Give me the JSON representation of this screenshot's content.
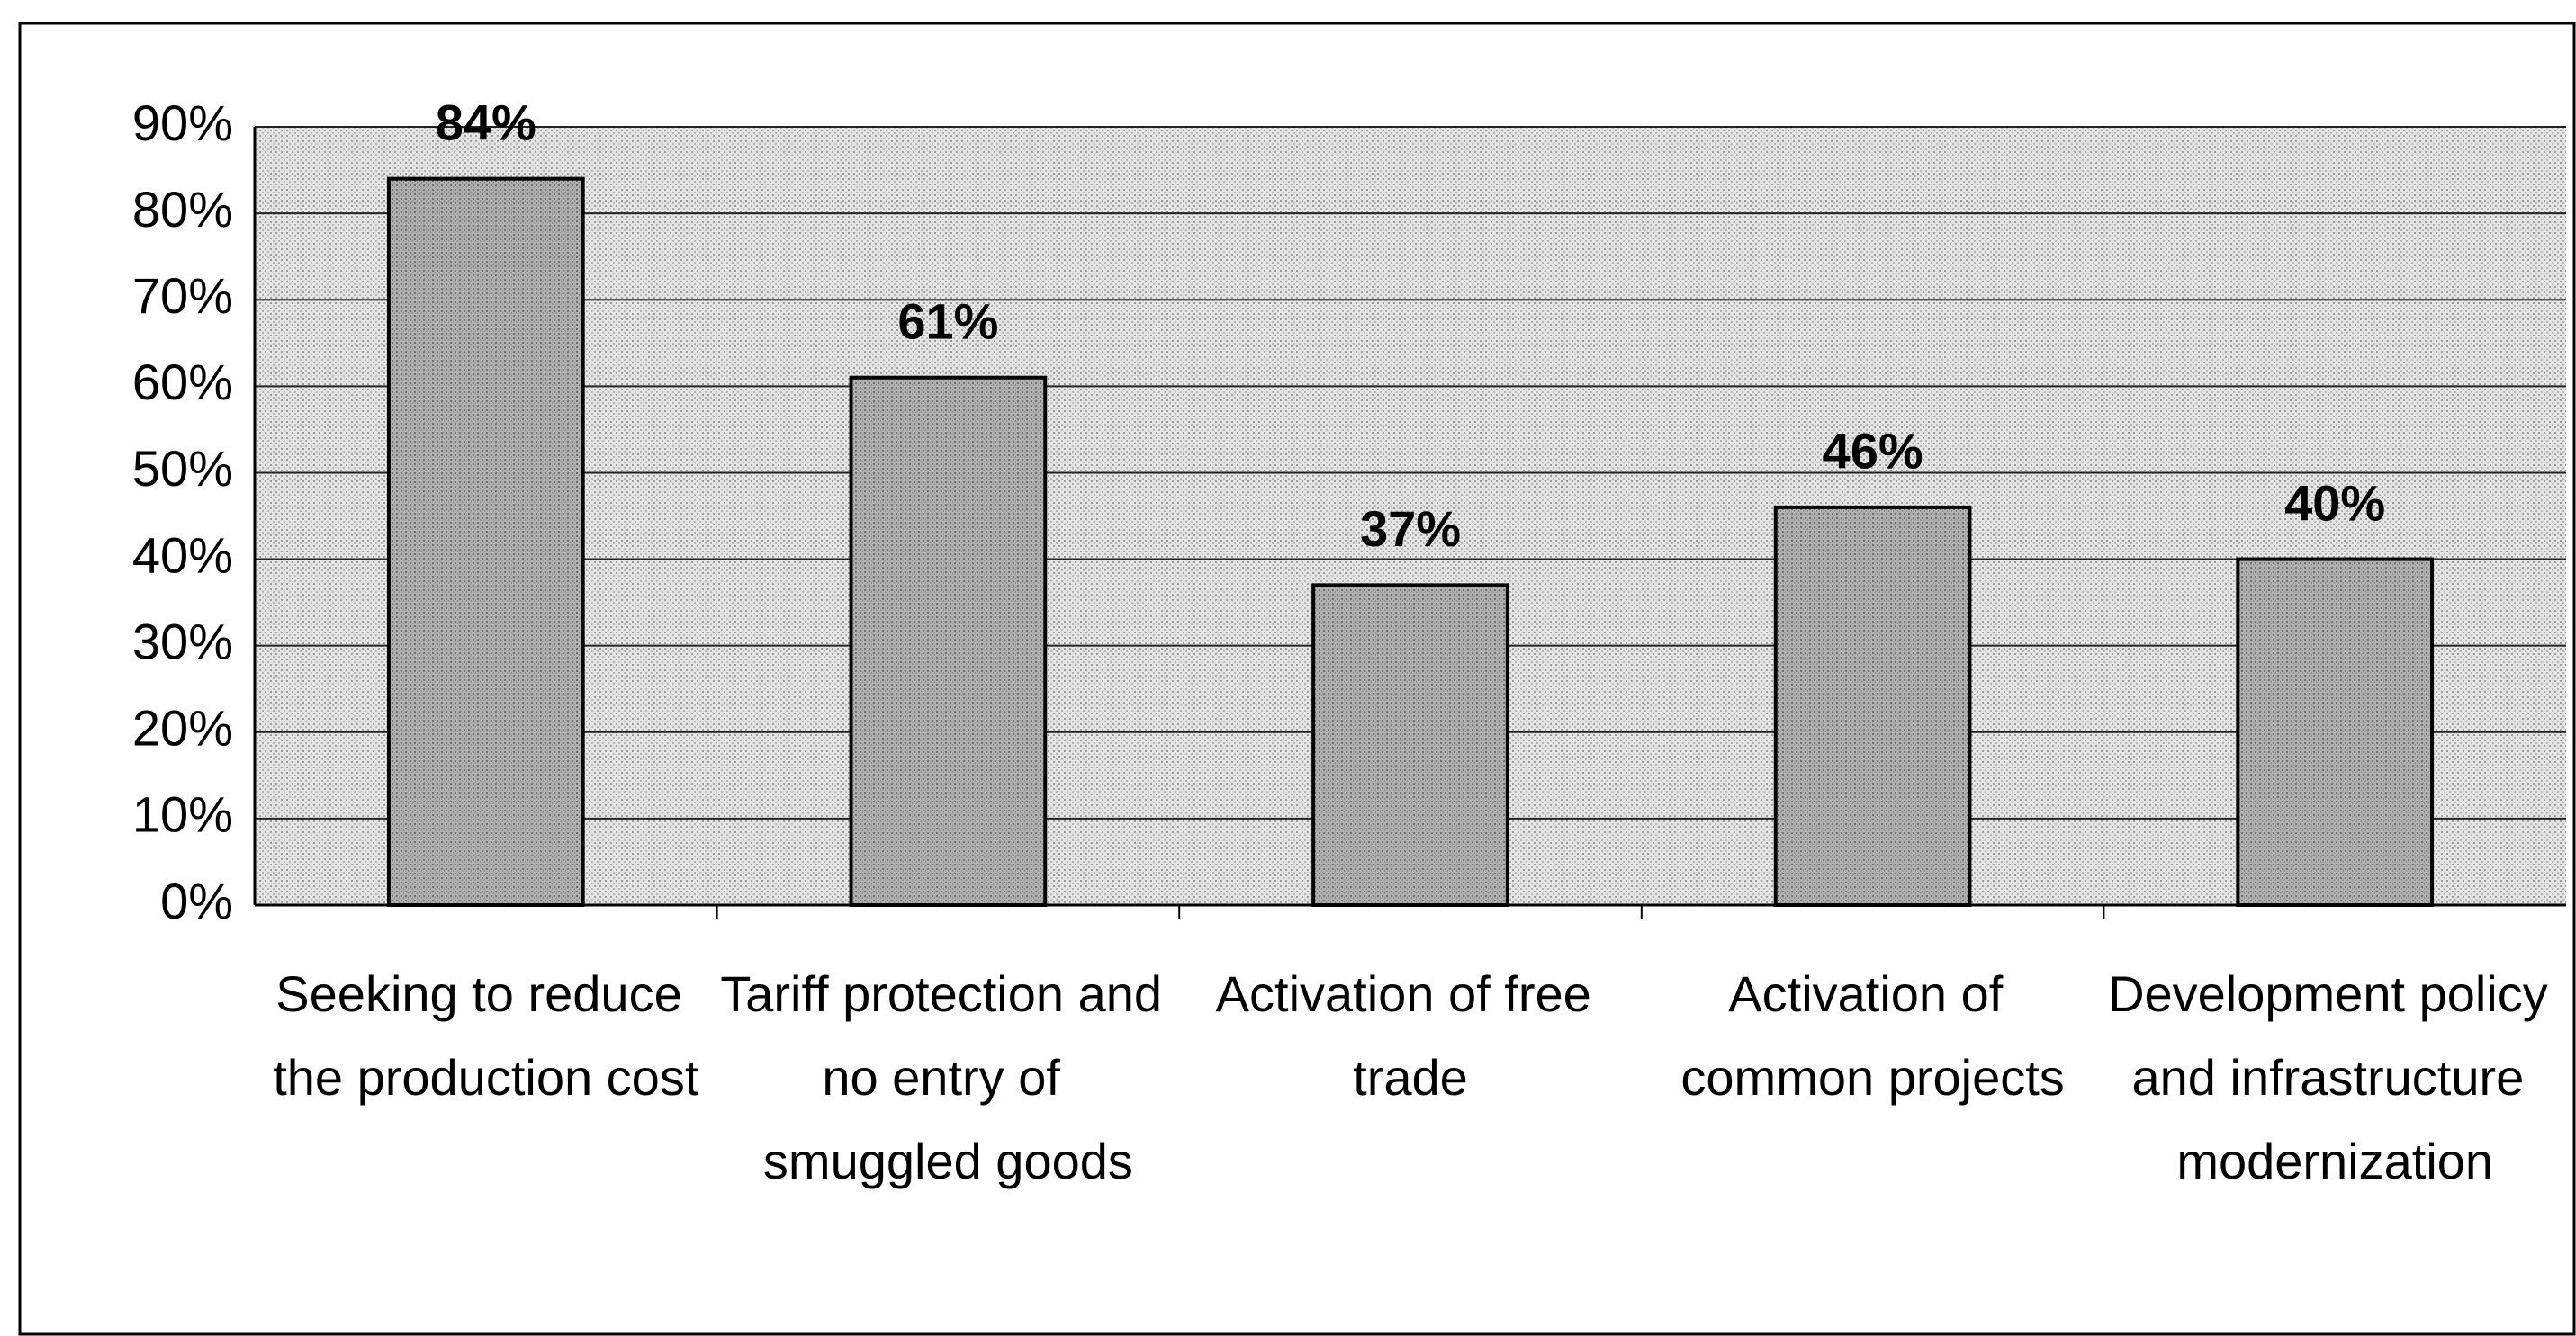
{
  "chart_data": {
    "type": "bar",
    "categories": [
      "Seeking to reduce the production cost",
      "Tariff protection and no entry of smuggled goods",
      "Activation of free trade",
      "Activation of common projects",
      "Development policy and infrastructure modernization"
    ],
    "values": [
      84,
      61,
      37,
      46,
      40
    ],
    "value_labels": [
      "84%",
      "61%",
      "37%",
      "46%",
      "40%"
    ],
    "color": "#a6a6a6",
    "ylim": [
      0,
      90
    ],
    "yticks": [
      {
        "value": 0,
        "label": "0%"
      },
      {
        "value": 10,
        "label": "10%"
      },
      {
        "value": 20,
        "label": "20%"
      },
      {
        "value": 30,
        "label": "30%"
      },
      {
        "value": 40,
        "label": "40%"
      },
      {
        "value": 50,
        "label": "50%"
      },
      {
        "value": 60,
        "label": "60%"
      },
      {
        "value": 70,
        "label": "70%"
      },
      {
        "value": 80,
        "label": "80%"
      },
      {
        "value": 90,
        "label": "90%"
      }
    ],
    "grid": true
  }
}
